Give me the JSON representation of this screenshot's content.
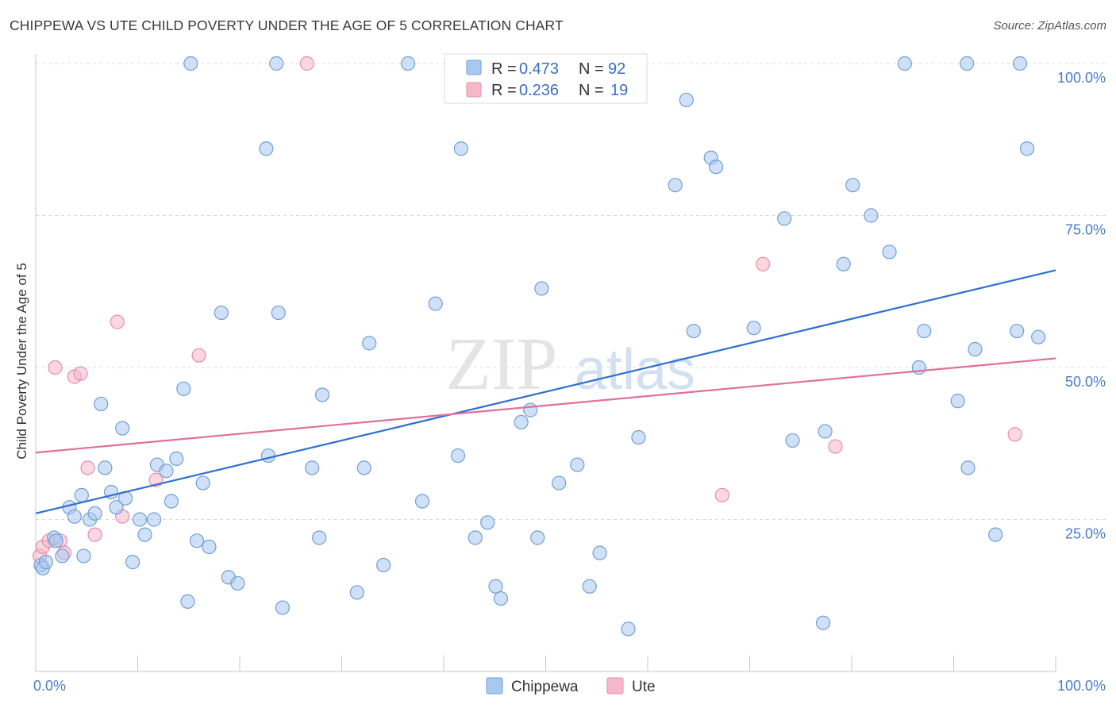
{
  "title": "CHIPPEWA VS UTE CHILD POVERTY UNDER THE AGE OF 5 CORRELATION CHART",
  "source": "Source: ZipAtlas.com",
  "watermark": {
    "zip": "ZIP",
    "atlas": "atlas"
  },
  "colors": {
    "chippewa_fill": "#a9c8f0",
    "chippewa_stroke": "#6f9fd8",
    "chippewa_line": "#2f6fd0",
    "ute_fill": "#f7b7cb",
    "ute_stroke": "#e58fab",
    "ute_line": "#e0709a"
  },
  "stats_legend": {
    "r_label": "R =",
    "n_label": "N =",
    "chippewa": {
      "r": "0.473",
      "n": "92"
    },
    "ute": {
      "r": "0.236",
      "n": "19"
    }
  },
  "chart_data": {
    "type": "scatter",
    "title": "CHIPPEWA VS UTE CHILD POVERTY UNDER THE AGE OF 5 CORRELATION CHART",
    "xlabel": "",
    "ylabel": "Child Poverty Under the Age of 5",
    "xlim": [
      0,
      100
    ],
    "ylim": [
      0,
      100
    ],
    "x_tick_labels": [
      "0.0%",
      "100.0%"
    ],
    "y_ticks": [
      25,
      50,
      75,
      100
    ],
    "y_tick_labels": [
      "25.0%",
      "50.0%",
      "75.0%",
      "100.0%"
    ],
    "grid": true,
    "legend_position": "top-center",
    "series": [
      {
        "name": "Chippewa",
        "trend": {
          "x": [
            0,
            100
          ],
          "y": [
            26.0,
            66.0
          ]
        },
        "points": [
          [
            0.5,
            17.5
          ],
          [
            0.7,
            17
          ],
          [
            1,
            18
          ],
          [
            1.8,
            22
          ],
          [
            2,
            21.5
          ],
          [
            2.6,
            19
          ],
          [
            3.3,
            27
          ],
          [
            3.8,
            25.5
          ],
          [
            4.5,
            29
          ],
          [
            4.7,
            19
          ],
          [
            5.3,
            25
          ],
          [
            5.8,
            26
          ],
          [
            6.4,
            44
          ],
          [
            6.8,
            33.5
          ],
          [
            7.4,
            29.5
          ],
          [
            7.9,
            27
          ],
          [
            8.5,
            40
          ],
          [
            8.8,
            28.5
          ],
          [
            9.5,
            18
          ],
          [
            10.2,
            25
          ],
          [
            10.7,
            22.5
          ],
          [
            11.6,
            25
          ],
          [
            11.9,
            34
          ],
          [
            12.8,
            33
          ],
          [
            13.3,
            28
          ],
          [
            13.8,
            35
          ],
          [
            14.5,
            46.5
          ],
          [
            14.9,
            11.5
          ],
          [
            15.2,
            100
          ],
          [
            15.8,
            21.5
          ],
          [
            16.4,
            31
          ],
          [
            17,
            20.5
          ],
          [
            18.2,
            59
          ],
          [
            18.9,
            15.5
          ],
          [
            19.8,
            14.5
          ],
          [
            22.6,
            86
          ],
          [
            22.8,
            35.5
          ],
          [
            23.6,
            100
          ],
          [
            23.8,
            59
          ],
          [
            24.2,
            10.5
          ],
          [
            27.1,
            33.5
          ],
          [
            27.8,
            22
          ],
          [
            28.1,
            45.5
          ],
          [
            31.5,
            13
          ],
          [
            32.2,
            33.5
          ],
          [
            32.7,
            54
          ],
          [
            34.1,
            17.5
          ],
          [
            36.5,
            100
          ],
          [
            37.9,
            28
          ],
          [
            39.2,
            60.5
          ],
          [
            41.4,
            35.5
          ],
          [
            41.7,
            86
          ],
          [
            43.1,
            22
          ],
          [
            44.3,
            24.5
          ],
          [
            45.1,
            14
          ],
          [
            45.6,
            12
          ],
          [
            47.6,
            41
          ],
          [
            48.5,
            43
          ],
          [
            49.2,
            22
          ],
          [
            49.6,
            63
          ],
          [
            51.3,
            31
          ],
          [
            53.1,
            34
          ],
          [
            54.3,
            14
          ],
          [
            55.3,
            19.5
          ],
          [
            58.1,
            7
          ],
          [
            59.1,
            38.5
          ],
          [
            62.7,
            80
          ],
          [
            63.8,
            94
          ],
          [
            64.5,
            56
          ],
          [
            66.2,
            84.5
          ],
          [
            66.7,
            83
          ],
          [
            70.4,
            56.5
          ],
          [
            73.4,
            74.5
          ],
          [
            74.2,
            38
          ],
          [
            77.2,
            8
          ],
          [
            77.4,
            39.5
          ],
          [
            79.2,
            67
          ],
          [
            80.1,
            80
          ],
          [
            81.9,
            75
          ],
          [
            83.7,
            69
          ],
          [
            85.2,
            100
          ],
          [
            86.6,
            50
          ],
          [
            87.1,
            56
          ],
          [
            90.4,
            44.5
          ],
          [
            91.3,
            100
          ],
          [
            91.4,
            33.5
          ],
          [
            92.1,
            53
          ],
          [
            94.1,
            22.5
          ],
          [
            96.5,
            100
          ],
          [
            96.2,
            56
          ],
          [
            97.2,
            86
          ],
          [
            98.3,
            55
          ]
        ]
      },
      {
        "name": "Ute",
        "trend": {
          "x": [
            0,
            100
          ],
          "y": [
            36.0,
            51.5
          ]
        },
        "points": [
          [
            0.4,
            19
          ],
          [
            0.7,
            20.5
          ],
          [
            1.3,
            21.5
          ],
          [
            1.9,
            50
          ],
          [
            2.4,
            21.5
          ],
          [
            2.8,
            19.5
          ],
          [
            3.8,
            48.5
          ],
          [
            4.4,
            49
          ],
          [
            5.1,
            33.5
          ],
          [
            5.8,
            22.5
          ],
          [
            8,
            57.5
          ],
          [
            8.5,
            25.5
          ],
          [
            11.8,
            31.5
          ],
          [
            16,
            52
          ],
          [
            26.6,
            100
          ],
          [
            67.3,
            29
          ],
          [
            71.3,
            67
          ],
          [
            78.4,
            37
          ],
          [
            96,
            39
          ]
        ]
      }
    ]
  },
  "bottom_legend": [
    {
      "label": "Chippewa"
    },
    {
      "label": "Ute"
    }
  ]
}
